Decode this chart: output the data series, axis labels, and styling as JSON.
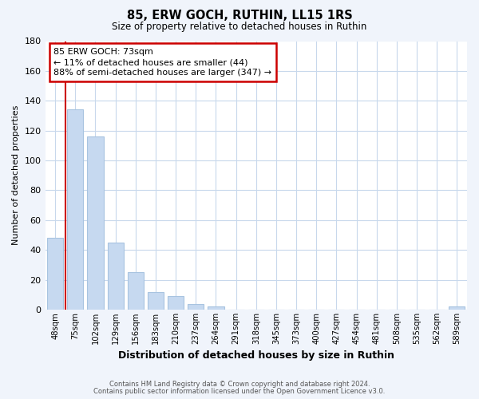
{
  "title": "85, ERW GOCH, RUTHIN, LL15 1RS",
  "subtitle": "Size of property relative to detached houses in Ruthin",
  "xlabel": "Distribution of detached houses by size in Ruthin",
  "ylabel": "Number of detached properties",
  "bar_labels": [
    "48sqm",
    "75sqm",
    "102sqm",
    "129sqm",
    "156sqm",
    "183sqm",
    "210sqm",
    "237sqm",
    "264sqm",
    "291sqm",
    "318sqm",
    "345sqm",
    "373sqm",
    "400sqm",
    "427sqm",
    "454sqm",
    "481sqm",
    "508sqm",
    "535sqm",
    "562sqm",
    "589sqm"
  ],
  "bar_values": [
    48,
    134,
    116,
    45,
    25,
    12,
    9,
    4,
    2,
    0,
    0,
    0,
    0,
    0,
    0,
    0,
    0,
    0,
    0,
    0,
    2
  ],
  "bar_color": "#c6d9f0",
  "bar_edge_color": "#a8c4e0",
  "ylim": [
    0,
    180
  ],
  "yticks": [
    0,
    20,
    40,
    60,
    80,
    100,
    120,
    140,
    160,
    180
  ],
  "annotation_box_text": "85 ERW GOCH: 73sqm\n← 11% of detached houses are smaller (44)\n88% of semi-detached houses are larger (347) →",
  "footer_line1": "Contains HM Land Registry data © Crown copyright and database right 2024.",
  "footer_line2": "Contains public sector information licensed under the Open Government Licence v3.0.",
  "grid_color": "#c8d8ec",
  "plot_background": "#ffffff",
  "fig_background": "#f0f4fb",
  "red_line_color": "#cc0000",
  "annotation_box_facecolor": "#ffffff",
  "annotation_box_edgecolor": "#cc0000"
}
